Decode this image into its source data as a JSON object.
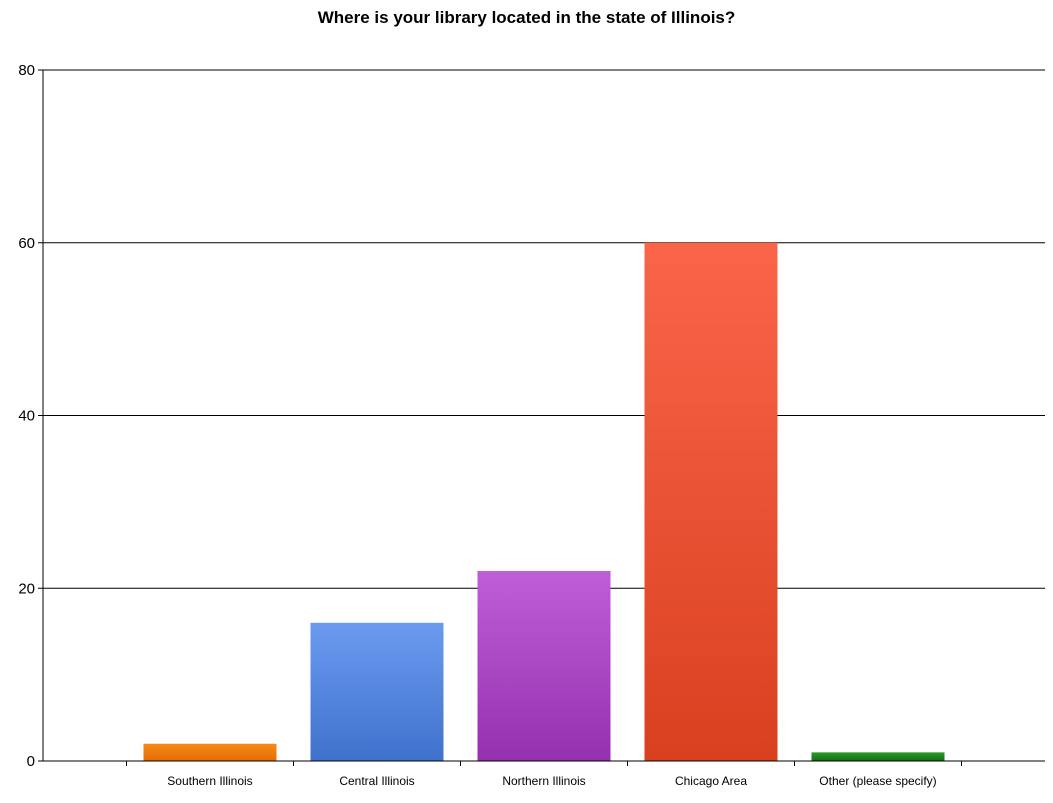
{
  "chart_data": {
    "type": "bar",
    "title": "Where is your library located in the state of Illinois?",
    "xlabel": "",
    "ylabel": "",
    "categories": [
      "Southern Illinois",
      "Central Illinois",
      "Northern Illinois",
      "Chicago Area",
      "Other (please specify)"
    ],
    "values": [
      2,
      16,
      22,
      60,
      1
    ],
    "ylim": [
      0,
      80
    ],
    "yticks": [
      0,
      20,
      40,
      60,
      80
    ],
    "grid": true,
    "legend": "none",
    "colors": [
      [
        "#f58a1a",
        "#e86a00"
      ],
      [
        "#6b9af0",
        "#3f72cc"
      ],
      [
        "#bf5ed8",
        "#9530ae"
      ],
      [
        "#fa654a",
        "#d8401f"
      ],
      [
        "#2a9a2a",
        "#157015"
      ]
    ]
  }
}
